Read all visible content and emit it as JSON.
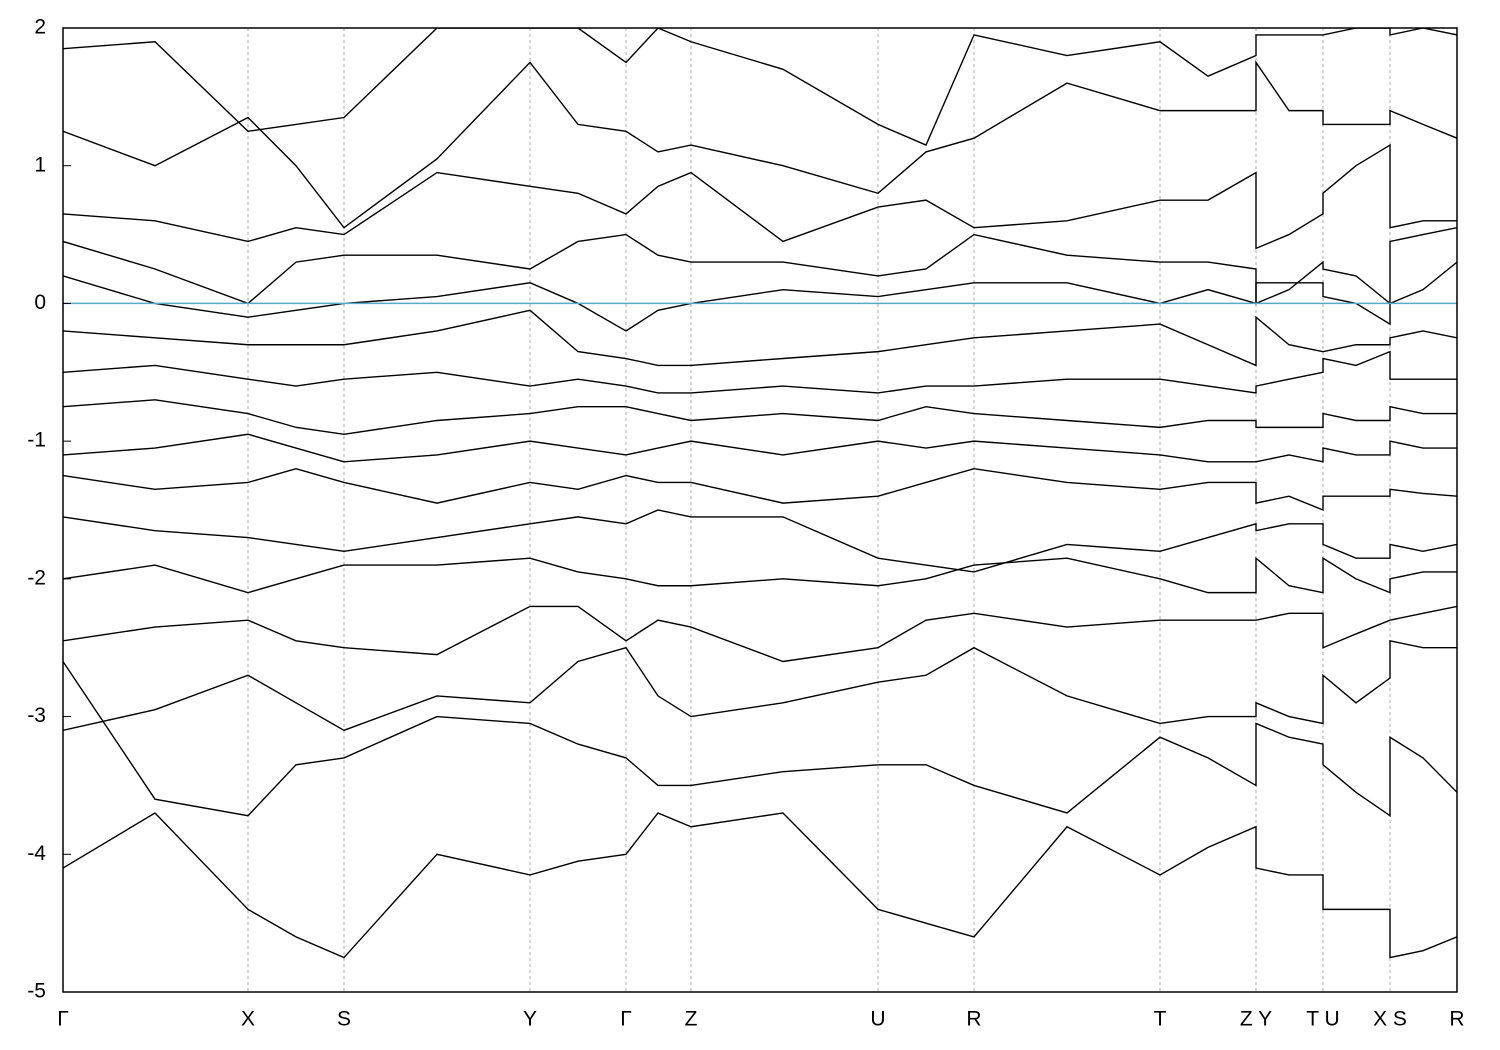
{
  "chart_data": {
    "type": "line",
    "x": [
      0,
      0.92,
      1.85,
      2.33,
      2.81,
      3.74,
      4.67,
      5.15,
      5.63,
      5.95,
      6.28,
      7.2,
      8.15,
      8.63,
      9.11,
      10.04,
      10.97,
      11.45,
      11.93,
      11.93,
      12.26,
      12.6,
      12.6,
      12.93,
      13.27,
      13.27,
      13.6,
      13.94
    ],
    "xlim": [
      0,
      13.94
    ],
    "xticks": [
      {
        "value": 0,
        "label": "Γ"
      },
      {
        "value": 1.85,
        "label": "X"
      },
      {
        "value": 2.81,
        "label": "S"
      },
      {
        "value": 4.67,
        "label": "Y"
      },
      {
        "value": 5.63,
        "label": "Γ"
      },
      {
        "value": 6.28,
        "label": "Z"
      },
      {
        "value": 8.15,
        "label": "U"
      },
      {
        "value": 9.11,
        "label": "R"
      },
      {
        "value": 10.97,
        "label": "T"
      },
      {
        "value": 11.93,
        "label": "Z  Y"
      },
      {
        "value": 12.6,
        "label": "T  U"
      },
      {
        "value": 13.27,
        "label": "X  S"
      },
      {
        "value": 13.94,
        "label": "R"
      }
    ],
    "ylim": [
      -5,
      2
    ],
    "yticks": [
      -5,
      -4,
      -3,
      -2,
      -1,
      0,
      1,
      2
    ],
    "fermi_level": 0,
    "fermi_color": "#5aa9c6",
    "color": "#000000",
    "series": [
      {
        "values": [
          -4.1,
          -3.7,
          -4.4,
          -4.6,
          -4.75,
          -4.0,
          -4.15,
          -4.05,
          -4.0,
          -3.7,
          -3.8,
          -3.7,
          -4.4,
          -4.5,
          -4.6,
          -3.8,
          -4.15,
          -3.95,
          -3.8,
          -4.1,
          -4.15,
          -4.15,
          -4.4,
          -4.4,
          -4.4,
          -4.75,
          -4.7,
          -4.6
        ]
      },
      {
        "values": [
          -2.6,
          -3.6,
          -3.72,
          -3.35,
          -3.3,
          -3.0,
          -3.05,
          -3.2,
          -3.3,
          -3.5,
          -3.5,
          -3.4,
          -3.35,
          -3.35,
          -3.5,
          -3.7,
          -3.15,
          -3.3,
          -3.5,
          -3.05,
          -3.15,
          -3.2,
          -3.35,
          -3.55,
          -3.72,
          -3.15,
          -3.3,
          -3.55
        ]
      },
      {
        "values": [
          -3.1,
          -2.95,
          -2.7,
          -2.9,
          -3.1,
          -2.85,
          -2.9,
          -2.6,
          -2.5,
          -2.85,
          -3.0,
          -2.9,
          -2.75,
          -2.7,
          -2.5,
          -2.85,
          -3.05,
          -3.0,
          -3.0,
          -2.9,
          -3.0,
          -3.05,
          -2.7,
          -2.9,
          -2.72,
          -2.45,
          -2.5,
          -2.5
        ]
      },
      {
        "values": [
          -2.45,
          -2.35,
          -2.3,
          -2.45,
          -2.5,
          -2.55,
          -2.2,
          -2.2,
          -2.45,
          -2.3,
          -2.35,
          -2.6,
          -2.5,
          -2.3,
          -2.25,
          -2.35,
          -2.3,
          -2.3,
          -2.3,
          -2.3,
          -2.25,
          -2.25,
          -2.5,
          -2.4,
          -2.3,
          -2.3,
          -2.25,
          -2.2
        ]
      },
      {
        "values": [
          -2.0,
          -1.9,
          -2.1,
          -2.0,
          -1.9,
          -1.9,
          -1.85,
          -1.95,
          -2.0,
          -2.05,
          -2.05,
          -2.0,
          -2.05,
          -2.0,
          -1.9,
          -1.85,
          -2.0,
          -2.1,
          -2.1,
          -1.85,
          -2.05,
          -2.1,
          -1.85,
          -2.0,
          -2.1,
          -2.0,
          -1.95,
          -1.95
        ]
      },
      {
        "values": [
          -1.55,
          -1.65,
          -1.7,
          -1.75,
          -1.8,
          -1.7,
          -1.6,
          -1.55,
          -1.6,
          -1.5,
          -1.55,
          -1.55,
          -1.85,
          -1.9,
          -1.95,
          -1.75,
          -1.8,
          -1.7,
          -1.6,
          -1.65,
          -1.6,
          -1.6,
          -1.75,
          -1.85,
          -1.85,
          -1.75,
          -1.8,
          -1.75
        ]
      },
      {
        "values": [
          -1.25,
          -1.35,
          -1.3,
          -1.2,
          -1.3,
          -1.45,
          -1.3,
          -1.35,
          -1.25,
          -1.3,
          -1.3,
          -1.45,
          -1.4,
          -1.3,
          -1.2,
          -1.3,
          -1.35,
          -1.3,
          -1.3,
          -1.45,
          -1.4,
          -1.5,
          -1.4,
          -1.4,
          -1.4,
          -1.35,
          -1.38,
          -1.4
        ]
      },
      {
        "values": [
          -1.1,
          -1.05,
          -0.95,
          -1.05,
          -1.15,
          -1.1,
          -1.0,
          -1.05,
          -1.1,
          -1.05,
          -1.0,
          -1.1,
          -1.0,
          -1.05,
          -1.0,
          -1.05,
          -1.1,
          -1.15,
          -1.15,
          -1.15,
          -1.1,
          -1.15,
          -1.05,
          -1.1,
          -1.1,
          -1.0,
          -1.05,
          -1.05
        ]
      },
      {
        "values": [
          -0.75,
          -0.7,
          -0.8,
          -0.9,
          -0.95,
          -0.85,
          -0.8,
          -0.75,
          -0.75,
          -0.8,
          -0.85,
          -0.8,
          -0.85,
          -0.75,
          -0.8,
          -0.85,
          -0.9,
          -0.85,
          -0.85,
          -0.9,
          -0.9,
          -0.9,
          -0.8,
          -0.85,
          -0.85,
          -0.75,
          -0.8,
          -0.8
        ]
      },
      {
        "values": [
          -0.5,
          -0.45,
          -0.55,
          -0.6,
          -0.55,
          -0.5,
          -0.6,
          -0.55,
          -0.6,
          -0.65,
          -0.65,
          -0.6,
          -0.65,
          -0.6,
          -0.6,
          -0.55,
          -0.55,
          -0.6,
          -0.65,
          -0.6,
          -0.55,
          -0.5,
          -0.4,
          -0.45,
          -0.35,
          -0.55,
          -0.55,
          -0.55
        ]
      },
      {
        "values": [
          -0.2,
          -0.25,
          -0.3,
          -0.3,
          -0.3,
          -0.2,
          -0.05,
          -0.35,
          -0.4,
          -0.45,
          -0.45,
          -0.4,
          -0.35,
          -0.3,
          -0.25,
          -0.2,
          -0.15,
          -0.3,
          -0.45,
          -0.1,
          -0.3,
          -0.35,
          -0.35,
          -0.3,
          -0.3,
          -0.25,
          -0.2,
          -0.25
        ]
      },
      {
        "values": [
          0.2,
          0.0,
          -0.1,
          -0.05,
          0.0,
          0.05,
          0.15,
          0.0,
          -0.2,
          -0.05,
          0.0,
          0.1,
          0.05,
          0.1,
          0.15,
          0.15,
          0.0,
          0.1,
          0.0,
          0.15,
          0.15,
          0.15,
          0.05,
          0.0,
          -0.15,
          0.0,
          0.1,
          0.3
        ]
      },
      {
        "values": [
          0.45,
          0.25,
          0.0,
          0.3,
          0.35,
          0.35,
          0.25,
          0.45,
          0.5,
          0.35,
          0.3,
          0.3,
          0.2,
          0.25,
          0.5,
          0.35,
          0.3,
          0.3,
          0.25,
          0.0,
          0.1,
          0.3,
          0.25,
          0.2,
          0.0,
          0.45,
          0.5,
          0.55
        ]
      },
      {
        "values": [
          0.65,
          0.6,
          0.45,
          0.55,
          0.5,
          0.95,
          0.85,
          0.8,
          0.65,
          0.85,
          0.95,
          0.45,
          0.7,
          0.75,
          0.55,
          0.6,
          0.75,
          0.75,
          0.95,
          0.4,
          0.5,
          0.65,
          0.8,
          1.0,
          1.15,
          0.55,
          0.6,
          0.6
        ]
      },
      {
        "values": [
          1.25,
          1.0,
          1.35,
          1.0,
          0.55,
          1.05,
          1.75,
          1.3,
          1.25,
          1.1,
          1.15,
          1.0,
          0.8,
          1.1,
          1.2,
          1.6,
          1.4,
          1.4,
          1.4,
          1.75,
          1.4,
          1.4,
          1.3,
          1.3,
          1.3,
          1.4,
          1.3,
          1.2
        ]
      },
      {
        "values": [
          1.85,
          1.9,
          1.25,
          1.3,
          1.35,
          2.0,
          2.0,
          2.0,
          1.75,
          2.0,
          1.9,
          1.7,
          1.3,
          1.15,
          1.95,
          1.8,
          1.9,
          1.65,
          1.8,
          1.95,
          1.95,
          1.95,
          1.95,
          2.0,
          2.0,
          1.95,
          2.0,
          1.95
        ]
      }
    ]
  }
}
